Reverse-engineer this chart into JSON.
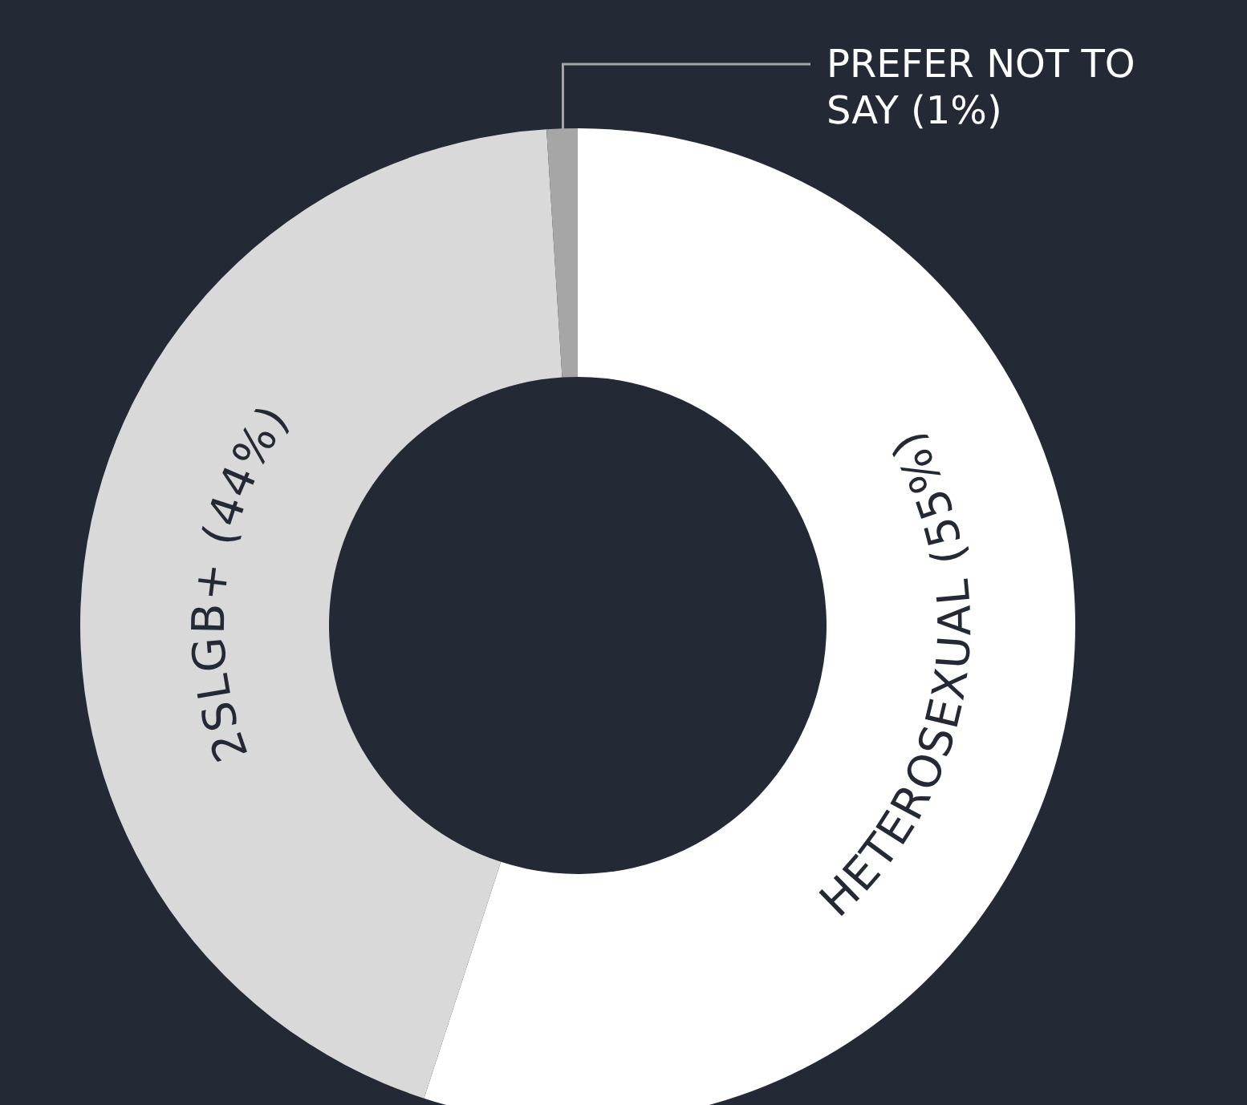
{
  "chart_data": {
    "type": "donut",
    "categories": [
      "HETEROSEXUAL (55%)",
      "2SLGB+ (44%)",
      "PREFER NOT TO SAY (1%)"
    ],
    "values": [
      55,
      44,
      1
    ],
    "colors": [
      "#ffffff",
      "#d9d9d9",
      "#a6a6a6"
    ]
  }
}
